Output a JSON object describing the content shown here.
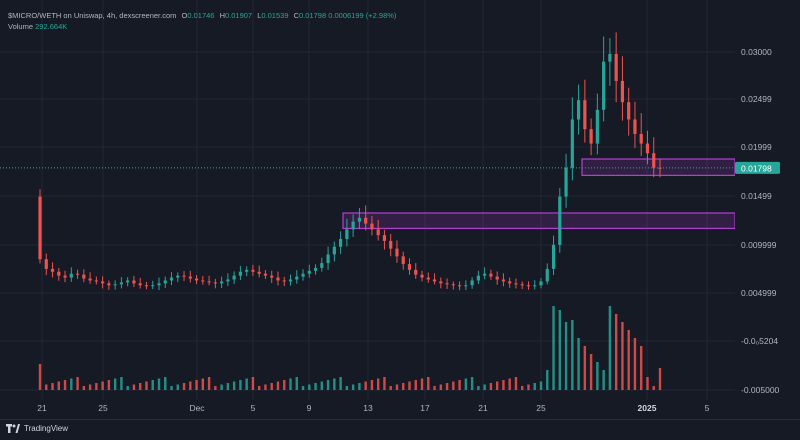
{
  "legend": {
    "title": "$MICRO/WETH on Uniswap, 4h, dexscreener.com",
    "o_key": "O",
    "open": "0.01746",
    "h_key": "H",
    "high": "0.01907",
    "l_key": "L",
    "low": "0.01539",
    "c_key": "C",
    "close": "0.01798",
    "change": "0.0006199 (+2.98%)",
    "volume_label": "Volume",
    "volume_value": "292.664K"
  },
  "footer": {
    "brand": "TradingView"
  },
  "colors": {
    "background": "#161a25",
    "up": "#26a69a",
    "down": "#ef5350",
    "zone": "#b23fd0",
    "price_tag": "#26a69a"
  },
  "chart_data": {
    "type": "candlestick",
    "symbol": "$MICRO/WETH",
    "interval": "4h",
    "current_price_label": "0.01798",
    "price_axis_ticks": [
      "0.03000",
      "0.02499",
      "0.01999",
      "0.01499",
      "0.009999",
      "0.004999",
      "-0.0₀5204",
      "-0.005000"
    ],
    "time_axis_ticks": [
      "21",
      "25",
      "Dec",
      "5",
      "9",
      "13",
      "17",
      "21",
      "25",
      "2025",
      "5"
    ],
    "approx_closes": [
      0.0085,
      0.0075,
      0.0072,
      0.0068,
      0.0066,
      0.007,
      0.0069,
      0.0065,
      0.0063,
      0.0062,
      0.006,
      0.0058,
      0.0059,
      0.0061,
      0.0063,
      0.006,
      0.0058,
      0.0057,
      0.0058,
      0.006,
      0.0063,
      0.0066,
      0.0068,
      0.0067,
      0.0065,
      0.0063,
      0.0062,
      0.0061,
      0.006,
      0.0062,
      0.0064,
      0.0068,
      0.0072,
      0.0074,
      0.0072,
      0.007,
      0.0068,
      0.0066,
      0.0063,
      0.0062,
      0.0064,
      0.0067,
      0.007,
      0.0073,
      0.0076,
      0.0081,
      0.009,
      0.0098,
      0.0106,
      0.0116,
      0.0124,
      0.0128,
      0.0122,
      0.0116,
      0.011,
      0.0104,
      0.0096,
      0.0088,
      0.008,
      0.0074,
      0.0069,
      0.0066,
      0.0064,
      0.0062,
      0.006,
      0.0059,
      0.0058,
      0.0057,
      0.0058,
      0.0063,
      0.0068,
      0.007,
      0.0067,
      0.0064,
      0.0062,
      0.006,
      0.0059,
      0.0058,
      0.0057,
      0.0058,
      0.0062,
      0.0075,
      0.01,
      0.015,
      0.018,
      0.023,
      0.025,
      0.022,
      0.0205,
      0.024,
      0.029,
      0.0298,
      0.027,
      0.0248,
      0.023,
      0.0215,
      0.0205,
      0.0195,
      0.018,
      0.0179
    ],
    "zones": [
      {
        "from": 0.0117,
        "to": 0.0133
      },
      {
        "from": 0.0172,
        "to": 0.0189
      }
    ],
    "grid": true
  }
}
